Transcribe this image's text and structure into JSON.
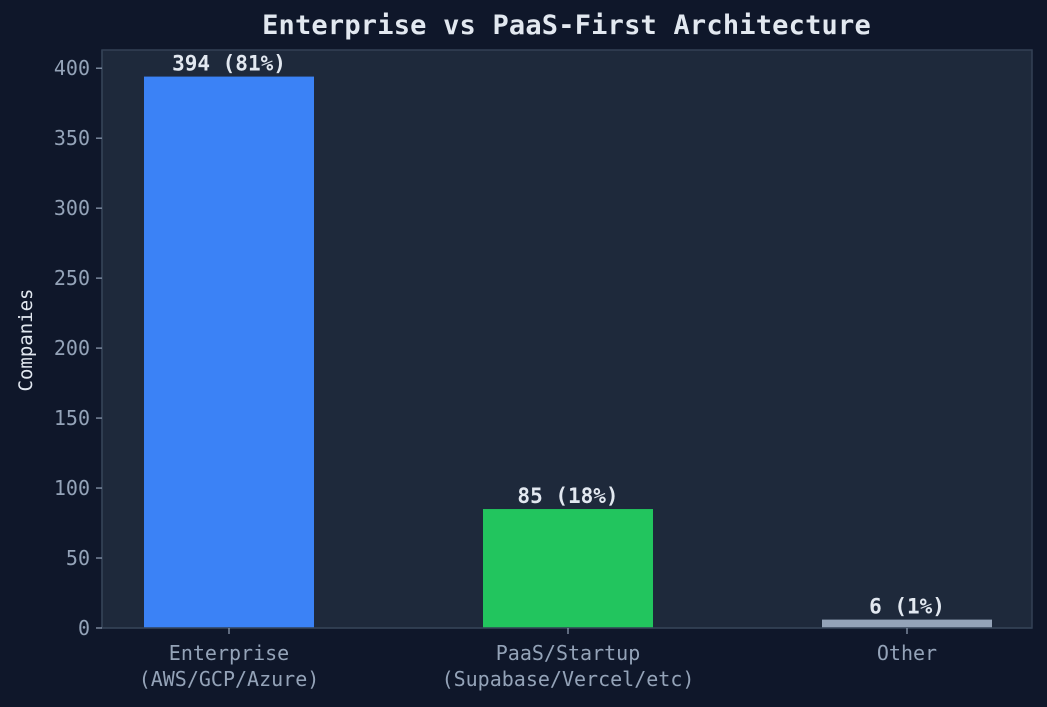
{
  "chart_data": {
    "type": "bar",
    "title": "Enterprise vs PaaS-First Architecture",
    "xlabel": "",
    "ylabel": "Companies",
    "categories": [
      [
        "Enterprise",
        "(AWS/GCP/Azure)"
      ],
      [
        "PaaS/Startup",
        "(Supabase/Vercel/etc)"
      ],
      [
        "Other"
      ]
    ],
    "values": [
      394,
      85,
      6
    ],
    "data_labels": [
      "394 (81%)",
      "85 (18%)",
      "6 (1%)"
    ],
    "colors": [
      "#3b82f6",
      "#22c55e",
      "#94a3b8"
    ],
    "ylim": [
      0,
      413
    ],
    "yticks": [
      0,
      50,
      100,
      150,
      200,
      250,
      300,
      350,
      400
    ],
    "grid": false,
    "legend": "none"
  },
  "theme": {
    "background": "#0f172a",
    "plot_background": "#1e293b",
    "axis_color": "#334155",
    "tick_text": "#94a3b8",
    "label_text": "#e2e8f0"
  }
}
